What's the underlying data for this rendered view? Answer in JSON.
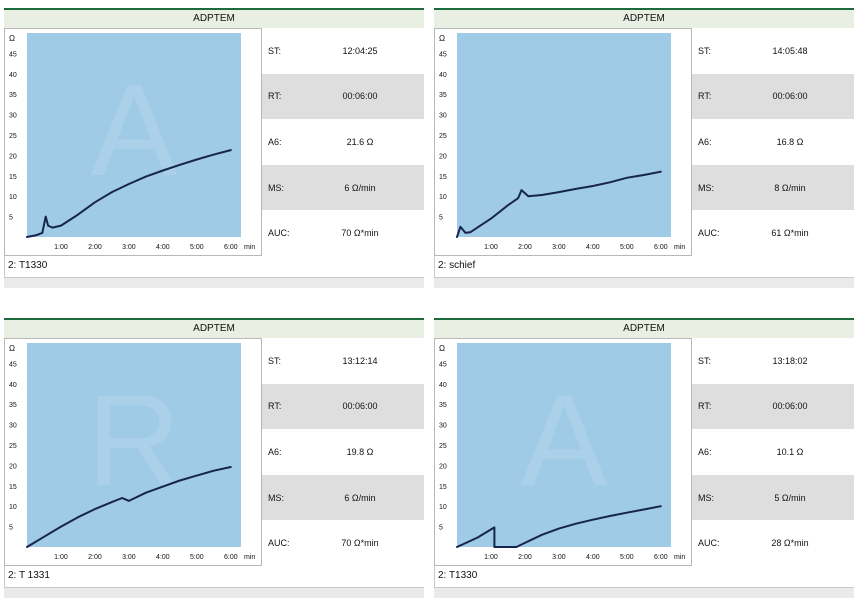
{
  "colors": {
    "plot_background": "#9fcbe6",
    "curve": "#17244d",
    "header_background": "#e9efe2",
    "header_border": "#1d6b3c",
    "row_shade": "#dedede",
    "watermark": "#b3d6ec"
  },
  "panels": [
    {
      "header": "ADPTEM",
      "footer": "2: T1330",
      "watermark": "A",
      "stats": [
        {
          "label": "ST:",
          "value": "12:04:25"
        },
        {
          "label": "RT:",
          "value": "00:06:00"
        },
        {
          "label": "A6:",
          "value": "21.6 Ω"
        },
        {
          "label": "MS:",
          "value": "6 Ω/min"
        },
        {
          "label": "AUC:",
          "value": "70 Ω*min"
        }
      ]
    },
    {
      "header": "ADPTEM",
      "footer": "2: schief",
      "watermark": "",
      "stats": [
        {
          "label": "ST:",
          "value": "14:05:48"
        },
        {
          "label": "RT:",
          "value": "00:06:00"
        },
        {
          "label": "A6:",
          "value": "16.8 Ω"
        },
        {
          "label": "MS:",
          "value": "8 Ω/min"
        },
        {
          "label": "AUC:",
          "value": "61 Ω*min"
        }
      ]
    },
    {
      "header": "ADPTEM",
      "footer": "2: T 1331",
      "watermark": "R",
      "stats": [
        {
          "label": "ST:",
          "value": "13:12:14"
        },
        {
          "label": "RT:",
          "value": "00:06:00"
        },
        {
          "label": "A6:",
          "value": "19.8 Ω"
        },
        {
          "label": "MS:",
          "value": "6 Ω/min"
        },
        {
          "label": "AUC:",
          "value": "70 Ω*min"
        }
      ]
    },
    {
      "header": "ADPTEM",
      "footer": "2: T1330",
      "watermark": "A",
      "stats": [
        {
          "label": "ST:",
          "value": "13:18:02"
        },
        {
          "label": "RT:",
          "value": "00:06:00"
        },
        {
          "label": "A6:",
          "value": "10.1 Ω"
        },
        {
          "label": "MS:",
          "value": "5 Ω/min"
        },
        {
          "label": "AUC:",
          "value": "28 Ω*min"
        }
      ]
    }
  ],
  "chart_data": [
    {
      "type": "line",
      "title": "ADPTEM",
      "ylabel": "Ω",
      "xlabel": "min",
      "xlim": [
        0,
        6.3
      ],
      "ylim": [
        0,
        50
      ],
      "yticks": [
        "5",
        "10",
        "15",
        "20",
        "25",
        "30",
        "35",
        "40",
        "45"
      ],
      "xticks": [
        "1:00",
        "2:00",
        "3:00",
        "4:00",
        "5:00",
        "6:00"
      ],
      "grid": false,
      "series": [
        {
          "x": [
            0,
            0.25,
            0.45,
            0.55,
            0.62,
            0.75,
            1.0,
            1.5,
            2.0,
            2.5,
            3.0,
            3.5,
            4.0,
            4.5,
            5.0,
            5.5,
            6.0
          ],
          "y": [
            0,
            0.4,
            1.0,
            5.0,
            2.8,
            2.3,
            2.8,
            5.5,
            8.5,
            11.0,
            13.0,
            14.8,
            16.3,
            17.7,
            19.0,
            20.2,
            21.3
          ]
        }
      ]
    },
    {
      "type": "line",
      "title": "ADPTEM",
      "ylabel": "Ω",
      "xlabel": "min",
      "xlim": [
        0,
        6.3
      ],
      "ylim": [
        0,
        50
      ],
      "yticks": [
        "5",
        "10",
        "15",
        "20",
        "25",
        "30",
        "35",
        "40",
        "45"
      ],
      "xticks": [
        "1:00",
        "2:00",
        "3:00",
        "4:00",
        "5:00",
        "6:00"
      ],
      "grid": false,
      "series": [
        {
          "x": [
            0,
            0.1,
            0.25,
            0.4,
            1.0,
            1.5,
            1.8,
            1.9,
            2.1,
            2.5,
            3.0,
            3.5,
            4.0,
            4.5,
            5.0,
            5.5,
            6.0
          ],
          "y": [
            0,
            2.5,
            1.0,
            1.2,
            4.5,
            7.8,
            9.5,
            11.5,
            10.0,
            10.3,
            11.0,
            11.8,
            12.5,
            13.4,
            14.5,
            15.2,
            16.0
          ]
        }
      ]
    },
    {
      "type": "line",
      "title": "ADPTEM",
      "ylabel": "Ω",
      "xlabel": "min",
      "xlim": [
        0,
        6.3
      ],
      "ylim": [
        0,
        50
      ],
      "yticks": [
        "5",
        "10",
        "15",
        "20",
        "25",
        "30",
        "35",
        "40",
        "45"
      ],
      "xticks": [
        "1:00",
        "2:00",
        "3:00",
        "4:00",
        "5:00",
        "6:00"
      ],
      "grid": false,
      "series": [
        {
          "x": [
            0,
            0.5,
            1.0,
            1.5,
            2.0,
            2.5,
            2.8,
            3.0,
            3.5,
            4.0,
            4.5,
            5.0,
            5.5,
            6.0
          ],
          "y": [
            0,
            2.5,
            5.0,
            7.3,
            9.3,
            11.0,
            12.0,
            11.3,
            13.3,
            14.8,
            16.3,
            17.5,
            18.7,
            19.6
          ]
        }
      ]
    },
    {
      "type": "line",
      "title": "ADPTEM",
      "ylabel": "Ω",
      "xlabel": "min",
      "xlim": [
        0,
        6.3
      ],
      "ylim": [
        0,
        50
      ],
      "yticks": [
        "5",
        "10",
        "15",
        "20",
        "25",
        "30",
        "35",
        "40",
        "45"
      ],
      "xticks": [
        "1:00",
        "2:00",
        "3:00",
        "4:00",
        "5:00",
        "6:00"
      ],
      "grid": false,
      "series": [
        {
          "x": [
            0,
            0.6,
            1.1,
            1.1,
            1.75,
            2.0,
            2.5,
            3.0,
            3.5,
            4.0,
            4.5,
            5.0,
            5.5,
            6.0
          ],
          "y": [
            0,
            2.3,
            4.8,
            0,
            0,
            1.0,
            3.0,
            4.5,
            5.7,
            6.7,
            7.6,
            8.4,
            9.2,
            10.0
          ]
        }
      ]
    }
  ]
}
